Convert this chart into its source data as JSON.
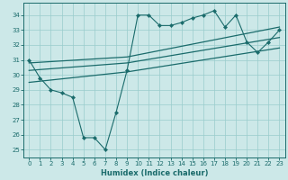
{
  "title": "",
  "xlabel": "Humidex (Indice chaleur)",
  "ylabel": "",
  "bg_color": "#cce8e8",
  "grid_color": "#99cccc",
  "line_color": "#1a6b6b",
  "xlim": [
    -0.5,
    23.5
  ],
  "ylim": [
    24.5,
    34.8
  ],
  "yticks": [
    25,
    26,
    27,
    28,
    29,
    30,
    31,
    32,
    33,
    34
  ],
  "xticks": [
    0,
    1,
    2,
    3,
    4,
    5,
    6,
    7,
    8,
    9,
    10,
    11,
    12,
    13,
    14,
    15,
    16,
    17,
    18,
    19,
    20,
    21,
    22,
    23
  ],
  "lines": [
    {
      "x": [
        0,
        1,
        2,
        3,
        4,
        5,
        6,
        7,
        8,
        9,
        10,
        11,
        12,
        13,
        14,
        15,
        16,
        17,
        18,
        19,
        20,
        21,
        22,
        23
      ],
      "y": [
        31.0,
        29.8,
        29.0,
        28.8,
        28.5,
        25.8,
        25.8,
        25.0,
        27.5,
        30.3,
        34.0,
        34.0,
        33.3,
        33.3,
        33.5,
        33.8,
        34.0,
        34.3,
        33.2,
        34.0,
        32.2,
        31.5,
        32.2,
        33.0
      ],
      "marker": "D",
      "markersize": 2.2,
      "linewidth": 0.8,
      "zorder": 3
    },
    {
      "x": [
        0,
        9,
        23
      ],
      "y": [
        30.8,
        31.2,
        33.2
      ],
      "marker": null,
      "markersize": 0,
      "linewidth": 0.9,
      "zorder": 2
    },
    {
      "x": [
        0,
        9,
        23
      ],
      "y": [
        30.3,
        30.8,
        32.5
      ],
      "marker": null,
      "markersize": 0,
      "linewidth": 0.9,
      "zorder": 2
    },
    {
      "x": [
        0,
        9,
        23
      ],
      "y": [
        29.5,
        30.2,
        31.8
      ],
      "marker": null,
      "markersize": 0,
      "linewidth": 0.9,
      "zorder": 2
    }
  ]
}
